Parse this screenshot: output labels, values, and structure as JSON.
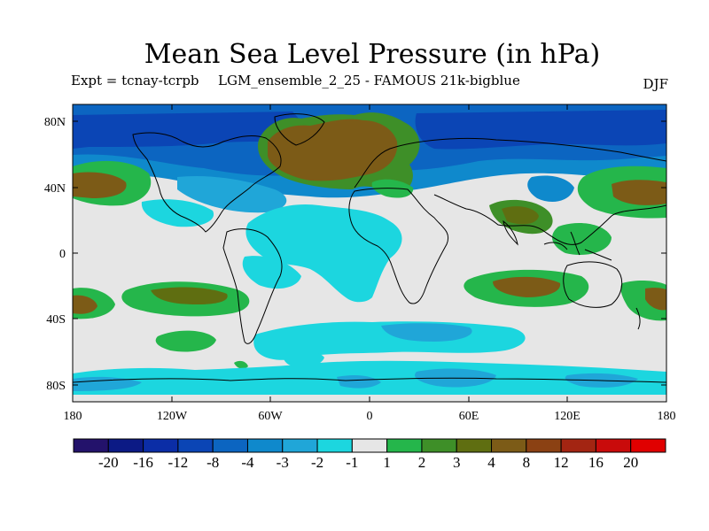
{
  "title": "Mean Sea Level Pressure (in hPa)",
  "experiment": "Expt = tcnay-tcrpb",
  "ensemble": "LGM_ensemble_2_25 - FAMOUS 21k-bigblue",
  "season": "DJF",
  "lat_ticks": [
    "80N",
    "40N",
    "0",
    "40S",
    "80S"
  ],
  "lon_ticks": [
    "180",
    "120W",
    "60W",
    "0",
    "60E",
    "120E",
    "180"
  ],
  "colorbar": {
    "labels": [
      "-20",
      "-16",
      "-12",
      "-8",
      "-4",
      "-3",
      "-2",
      "-1",
      "1",
      "2",
      "3",
      "4",
      "8",
      "12",
      "16",
      "20"
    ],
    "colors": [
      "#23126b",
      "#0c1a85",
      "#0b2da6",
      "#0b45b5",
      "#0c65c1",
      "#0f89cc",
      "#20a6d8",
      "#1cd6df",
      "#e6e6e6",
      "#25b64b",
      "#3e8f28",
      "#5f6e11",
      "#7c5b17",
      "#8b4113",
      "#a32512",
      "#c90b0b",
      "#e00000"
    ]
  },
  "palette": {
    "neutral": "#e6e6e6",
    "cyan": "#1cd6df",
    "light_blue": "#20a6d8",
    "mid_blue": "#0f89cc",
    "blue": "#0c65c1",
    "dark_blue": "#0b45b5",
    "green": "#25b64b",
    "dark_green": "#3e8f28",
    "olive": "#5f6e11",
    "brown": "#7c5b17"
  }
}
